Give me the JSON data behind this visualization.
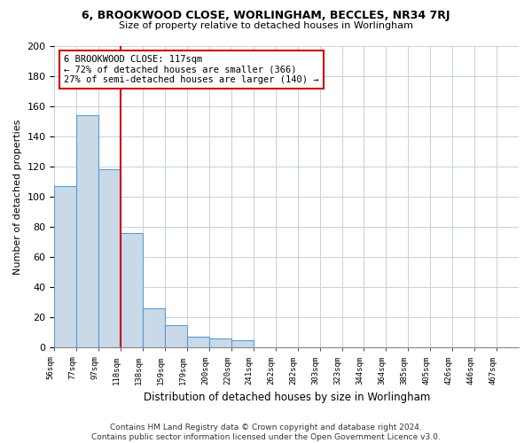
{
  "title1": "6, BROOKWOOD CLOSE, WORLINGHAM, BECCLES, NR34 7RJ",
  "title2": "Size of property relative to detached houses in Worlingham",
  "xlabel": "Distribution of detached houses by size in Worlingham",
  "ylabel": "Number of detached properties",
  "bar_values": [
    107,
    154,
    118,
    76,
    26,
    15,
    7,
    6,
    5,
    0,
    0,
    0,
    0,
    0,
    0,
    0,
    0,
    0,
    0,
    0,
    0
  ],
  "categories": [
    "56sqm",
    "77sqm",
    "97sqm",
    "118sqm",
    "138sqm",
    "159sqm",
    "179sqm",
    "200sqm",
    "220sqm",
    "241sqm",
    "262sqm",
    "282sqm",
    "303sqm",
    "323sqm",
    "344sqm",
    "364sqm",
    "385sqm",
    "405sqm",
    "426sqm",
    "446sqm",
    "467sqm"
  ],
  "bar_color": "#c9d9e8",
  "bar_edge_color": "#5b9bd5",
  "annotation_box_color": "#cc0000",
  "vline_color": "#cc0000",
  "annotation_line1": "6 BROOKWOOD CLOSE: 117sqm",
  "annotation_line2": "← 72% of detached houses are smaller (366)",
  "annotation_line3": "27% of semi-detached houses are larger (140) →",
  "ylim": [
    0,
    200
  ],
  "yticks": [
    0,
    20,
    40,
    60,
    80,
    100,
    120,
    140,
    160,
    180,
    200
  ],
  "footer1": "Contains HM Land Registry data © Crown copyright and database right 2024.",
  "footer2": "Contains public sector information licensed under the Open Government Licence v3.0.",
  "background_color": "#ffffff",
  "grid_color": "#c8d0d8"
}
